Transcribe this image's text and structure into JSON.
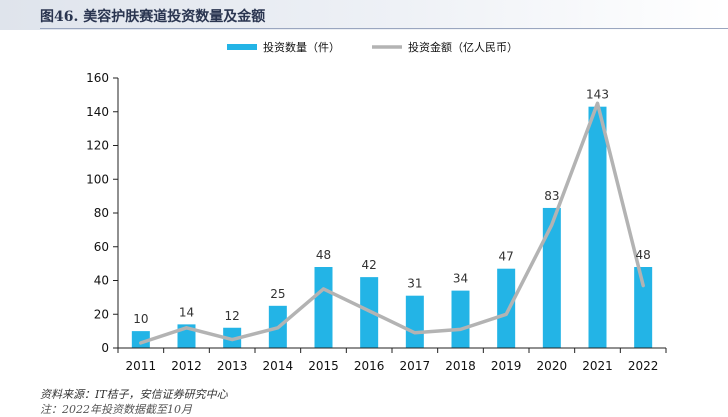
{
  "header": {
    "title": "图46. 美容护肤赛道投资数量及金额"
  },
  "footer": {
    "source": "资料来源：IT桔子，安信证券研究中心",
    "note": "注：2022年投资数据截至10月"
  },
  "chart_data": {
    "type": "bar",
    "title": "图46. 美容护肤赛道投资数量及金额",
    "categories": [
      "2011",
      "2012",
      "2013",
      "2014",
      "2015",
      "2016",
      "2017",
      "2018",
      "2019",
      "2020",
      "2021",
      "2022"
    ],
    "series": [
      {
        "name": "投资数量（件）",
        "kind": "bar",
        "color": "#23b4e6",
        "values": [
          10,
          14,
          12,
          25,
          48,
          42,
          31,
          34,
          47,
          83,
          143,
          48
        ]
      },
      {
        "name": "投资金额（亿人民币）",
        "kind": "line",
        "color": "#b3b3b3",
        "values": [
          3,
          12,
          5,
          12,
          35,
          22,
          9,
          11,
          20,
          73,
          145,
          37
        ]
      }
    ],
    "ylim": [
      0,
      160
    ],
    "yticks": [
      0,
      20,
      40,
      60,
      80,
      100,
      120,
      140,
      160
    ],
    "grid": false,
    "legend": "top-center"
  }
}
